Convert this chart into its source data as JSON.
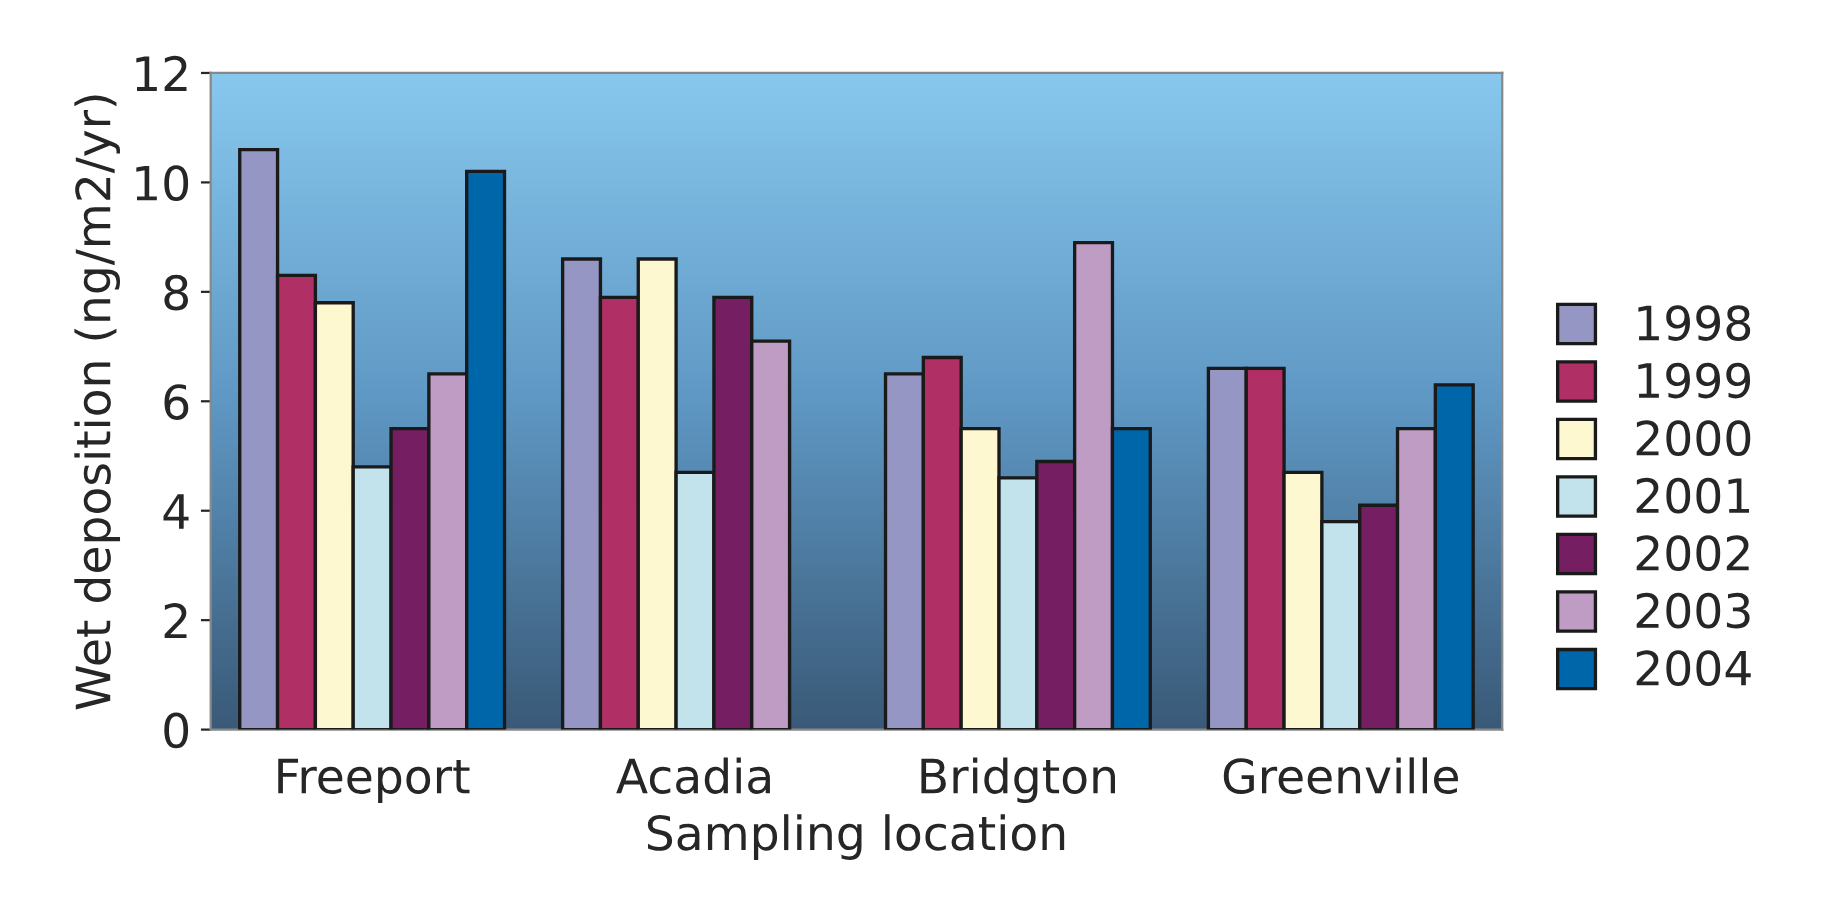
{
  "chart_data": {
    "type": "bar",
    "xlabel": "Sampling location",
    "ylabel": "Wet deposition (ng/m2/yr)",
    "categories": [
      "Freeport",
      "Acadia",
      "Bridgton",
      "Greenville"
    ],
    "series": [
      {
        "name": "1998",
        "color": "#9696c4",
        "values": [
          10.6,
          8.6,
          6.5,
          6.6
        ]
      },
      {
        "name": "1999",
        "color": "#b03066",
        "values": [
          8.3,
          7.9,
          6.8,
          6.6
        ]
      },
      {
        "name": "2000",
        "color": "#fdf8d0",
        "values": [
          7.8,
          8.6,
          5.5,
          4.7
        ]
      },
      {
        "name": "2001",
        "color": "#c2e3ec",
        "values": [
          4.8,
          4.7,
          4.6,
          3.8
        ]
      },
      {
        "name": "2002",
        "color": "#761e62",
        "values": [
          5.5,
          7.9,
          4.9,
          4.1
        ]
      },
      {
        "name": "2003",
        "color": "#be9cc4",
        "values": [
          6.5,
          7.1,
          8.9,
          5.5
        ]
      },
      {
        "name": "2004",
        "color": "#0066aa",
        "values": [
          10.2,
          null,
          5.5,
          6.3
        ]
      }
    ],
    "ylim": [
      0,
      12
    ],
    "yticks": [
      0,
      2,
      4,
      6,
      8,
      10,
      12
    ],
    "grid": false,
    "legend": "right"
  }
}
